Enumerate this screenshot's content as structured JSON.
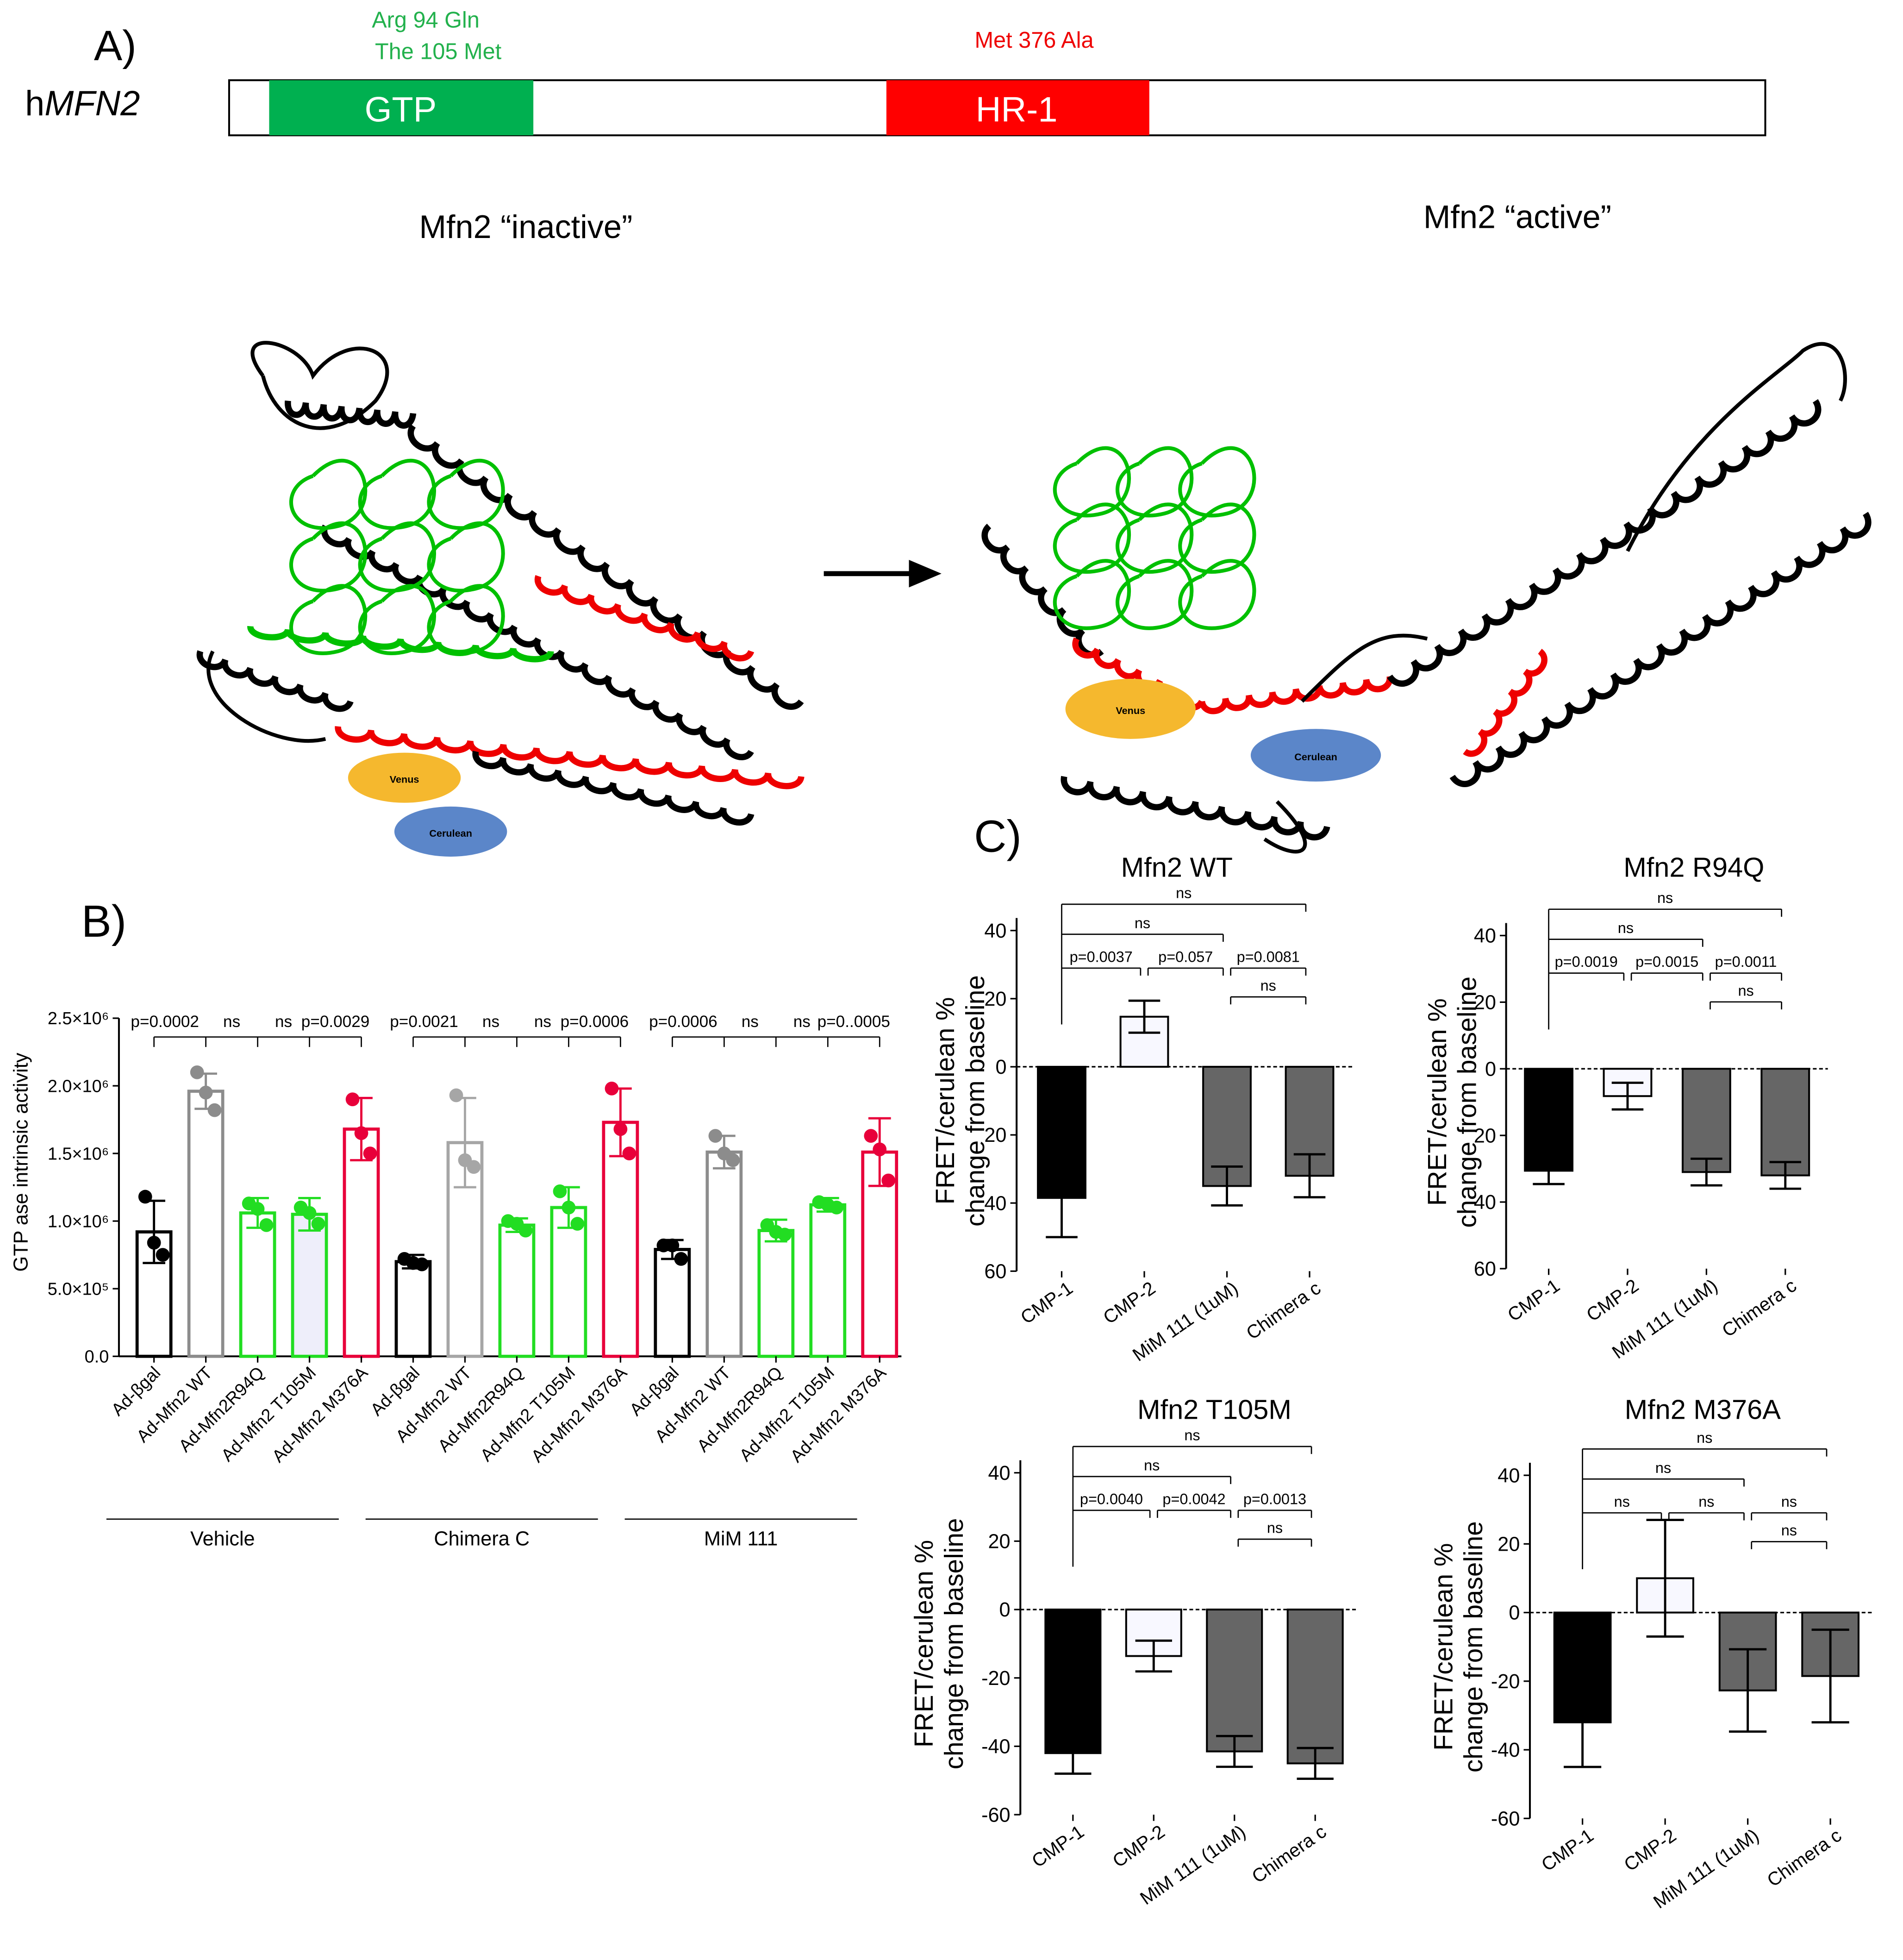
{
  "panel_a": {
    "label": "A)",
    "gene_prefix": "h",
    "gene": "MFN2",
    "domains": [
      "GTP",
      "HR-1"
    ],
    "mutations_gtp": [
      "Arg 94 Gln",
      "The 105 Met"
    ],
    "mutation_hr1": "Met 376 Ala"
  },
  "structures": {
    "inactive_title": "Mfn2 “inactive”",
    "active_title": "Mfn2 “active”",
    "fluorophores": [
      "Venus",
      "Cerulean"
    ]
  },
  "panel_b_label": "B)",
  "panel_c_label": "C)",
  "chart_data": [
    {
      "type": "bar",
      "y_label": "GTP ase intrinsic activity",
      "categories": [
        "Ad-βgal",
        "Ad-Mfn2 WT",
        "Ad-Mfn2R94Q",
        "Ad-Mfn2 T105M",
        "Ad-Mfn2 M376A",
        "Ad-βgal",
        "Ad-Mfn2 WT",
        "Ad-Mfn2R94Q",
        "Ad-Mfn2 T105M",
        "Ad-Mfn2 M376A",
        "Ad-βgal",
        "Ad-Mfn2 WT",
        "Ad-Mfn2R94Q",
        "Ad-Mfn2 T105M",
        "Ad-Mfn2 M376A"
      ],
      "groups": [
        "Vehicle",
        "Chimera C",
        "MiM 111"
      ],
      "values": [
        920000,
        1960000,
        1060000,
        1050000,
        1680000,
        700000,
        1580000,
        970000,
        1100000,
        1730000,
        790000,
        1510000,
        930000,
        1120000,
        1510000
      ],
      "errors": [
        230000,
        130000,
        110000,
        120000,
        230000,
        50000,
        330000,
        50000,
        150000,
        250000,
        70000,
        120000,
        80000,
        50000,
        250000
      ],
      "points": [
        [
          1180000,
          840000,
          750000
        ],
        [
          2100000,
          1950000,
          1820000
        ],
        [
          1130000,
          1090000,
          970000
        ],
        [
          1100000,
          1060000,
          980000
        ],
        [
          1900000,
          1650000,
          1500000
        ],
        [
          720000,
          690000,
          680000
        ],
        [
          1930000,
          1450000,
          1400000
        ],
        [
          1000000,
          980000,
          930000
        ],
        [
          1220000,
          1100000,
          980000
        ],
        [
          1980000,
          1680000,
          1500000
        ],
        [
          820000,
          820000,
          720000
        ],
        [
          1630000,
          1500000,
          1450000
        ],
        [
          970000,
          920000,
          900000
        ],
        [
          1140000,
          1120000,
          1100000
        ],
        [
          1630000,
          1530000,
          1300000
        ]
      ],
      "colors": [
        "#000000",
        "#8c8c8c",
        "#22dd22",
        "#22dd22",
        "#e8003a",
        "#000000",
        "#a6a6a6",
        "#22dd22",
        "#22dd22",
        "#e8003a",
        "#000000",
        "#8c8c8c",
        "#22dd22",
        "#22dd22",
        "#e8003a"
      ],
      "fills": [
        "#ffffff",
        "#ffffff",
        "#ffffff",
        "#eeeefa",
        "#ffffff",
        "#ffffff",
        "#ffffff",
        "#ffffff",
        "#ffffff",
        "#ffffff",
        "#ffffff",
        "#ffffff",
        "#ffffff",
        "#ffffff",
        "#ffffff"
      ],
      "ylim": [
        0,
        2500000
      ],
      "yticks": [
        {
          "value": 0,
          "label": "0.0"
        },
        {
          "value": 500000,
          "label": "5.0×10⁵"
        },
        {
          "value": 1000000,
          "label": "1.0×10⁶"
        },
        {
          "value": 1500000,
          "label": "1.5×10⁶"
        },
        {
          "value": 2000000,
          "label": "2.0×10⁶"
        },
        {
          "value": 2500000,
          "label": "2.5×10⁶"
        }
      ],
      "annotations": [
        "p=0.0002",
        "ns",
        "ns",
        "p=0.0029",
        "p=0.0021",
        "ns",
        "ns",
        "p=0.0006",
        "p=0.0006",
        "ns",
        "ns",
        "p=0..0005"
      ]
    },
    {
      "type": "bar",
      "title": "Mfn2 WT",
      "y_label": [
        "FRET/cerulean %",
        "change from baseline"
      ],
      "categories": [
        "CMP-1",
        "CMP-2",
        "MiM 111 (1uM)",
        "Chimera c"
      ],
      "values": [
        -38.5,
        14.7,
        -35,
        -32
      ],
      "errors": [
        11.5,
        4.7,
        5.7,
        6.3
      ],
      "colors": [
        "#000000",
        "#f8f8ff",
        "#666666",
        "#666666"
      ],
      "ylim": [
        -60,
        40
      ],
      "yticks": [
        40,
        20,
        0,
        {
          "value": -20,
          "label": "20"
        },
        {
          "value": -40,
          "label": "40"
        },
        {
          "value": -60,
          "label": "60"
        }
      ],
      "annotations": [
        "ns",
        "ns",
        "p=0.0037",
        "p=0.057",
        "p=0.0081",
        "ns"
      ]
    },
    {
      "type": "bar",
      "title": "Mfn2 R94Q",
      "y_label": [
        "FRET/cerulean %",
        "change from baseline"
      ],
      "categories": [
        "CMP-1",
        "CMP-2",
        "MiM 111 (1uM)",
        "Chimera c"
      ],
      "values": [
        -30.6,
        -8.2,
        -31,
        -32
      ],
      "errors": [
        4,
        4,
        4,
        4
      ],
      "colors": [
        "#000000",
        "#f8f8ff",
        "#666666",
        "#666666"
      ],
      "ylim": [
        -60,
        40
      ],
      "yticks": [
        40,
        20,
        0,
        {
          "value": -20,
          "label": "20"
        },
        {
          "value": -40,
          "label": "40"
        },
        {
          "value": -60,
          "label": "60"
        }
      ],
      "annotations": [
        "ns",
        "ns",
        "p=0.0019",
        "p=0.0015",
        "p=0.0011",
        "ns"
      ]
    },
    {
      "type": "bar",
      "title": "Mfn2 T105M",
      "y_label": [
        "FRET/cerulean %",
        "change from baseline"
      ],
      "categories": [
        "CMP-1",
        "CMP-2",
        "MiM 111 (1uM)",
        "Chimera c"
      ],
      "values": [
        -42,
        -13.6,
        -41.5,
        -45
      ],
      "errors": [
        6,
        4.5,
        4.5,
        4.5
      ],
      "colors": [
        "#000000",
        "#f8f8ff",
        "#666666",
        "#666666"
      ],
      "ylim": [
        -60,
        40
      ],
      "yticks": [
        40,
        20,
        0,
        -20,
        -40,
        -60
      ],
      "annotations": [
        "ns",
        "ns",
        "p=0.0040",
        "p=0.0042",
        "p=0.0013",
        "ns"
      ]
    },
    {
      "type": "bar",
      "title": "Mfn2 M376A",
      "y_label": [
        "FRET/cerulean %",
        "change from baseline"
      ],
      "categories": [
        "CMP-1",
        "CMP-2",
        "MiM 111 (1uM)",
        "Chimera c"
      ],
      "values": [
        -32,
        10,
        -22.7,
        -18.5
      ],
      "errors": [
        13,
        17,
        12,
        13.5
      ],
      "colors": [
        "#000000",
        "#f8f8ff",
        "#666666",
        "#666666"
      ],
      "ylim": [
        -60,
        40
      ],
      "yticks": [
        40,
        20,
        0,
        -20,
        -40,
        -60
      ],
      "annotations": [
        "ns",
        "ns",
        "ns",
        "ns",
        "ns",
        "ns"
      ]
    }
  ]
}
